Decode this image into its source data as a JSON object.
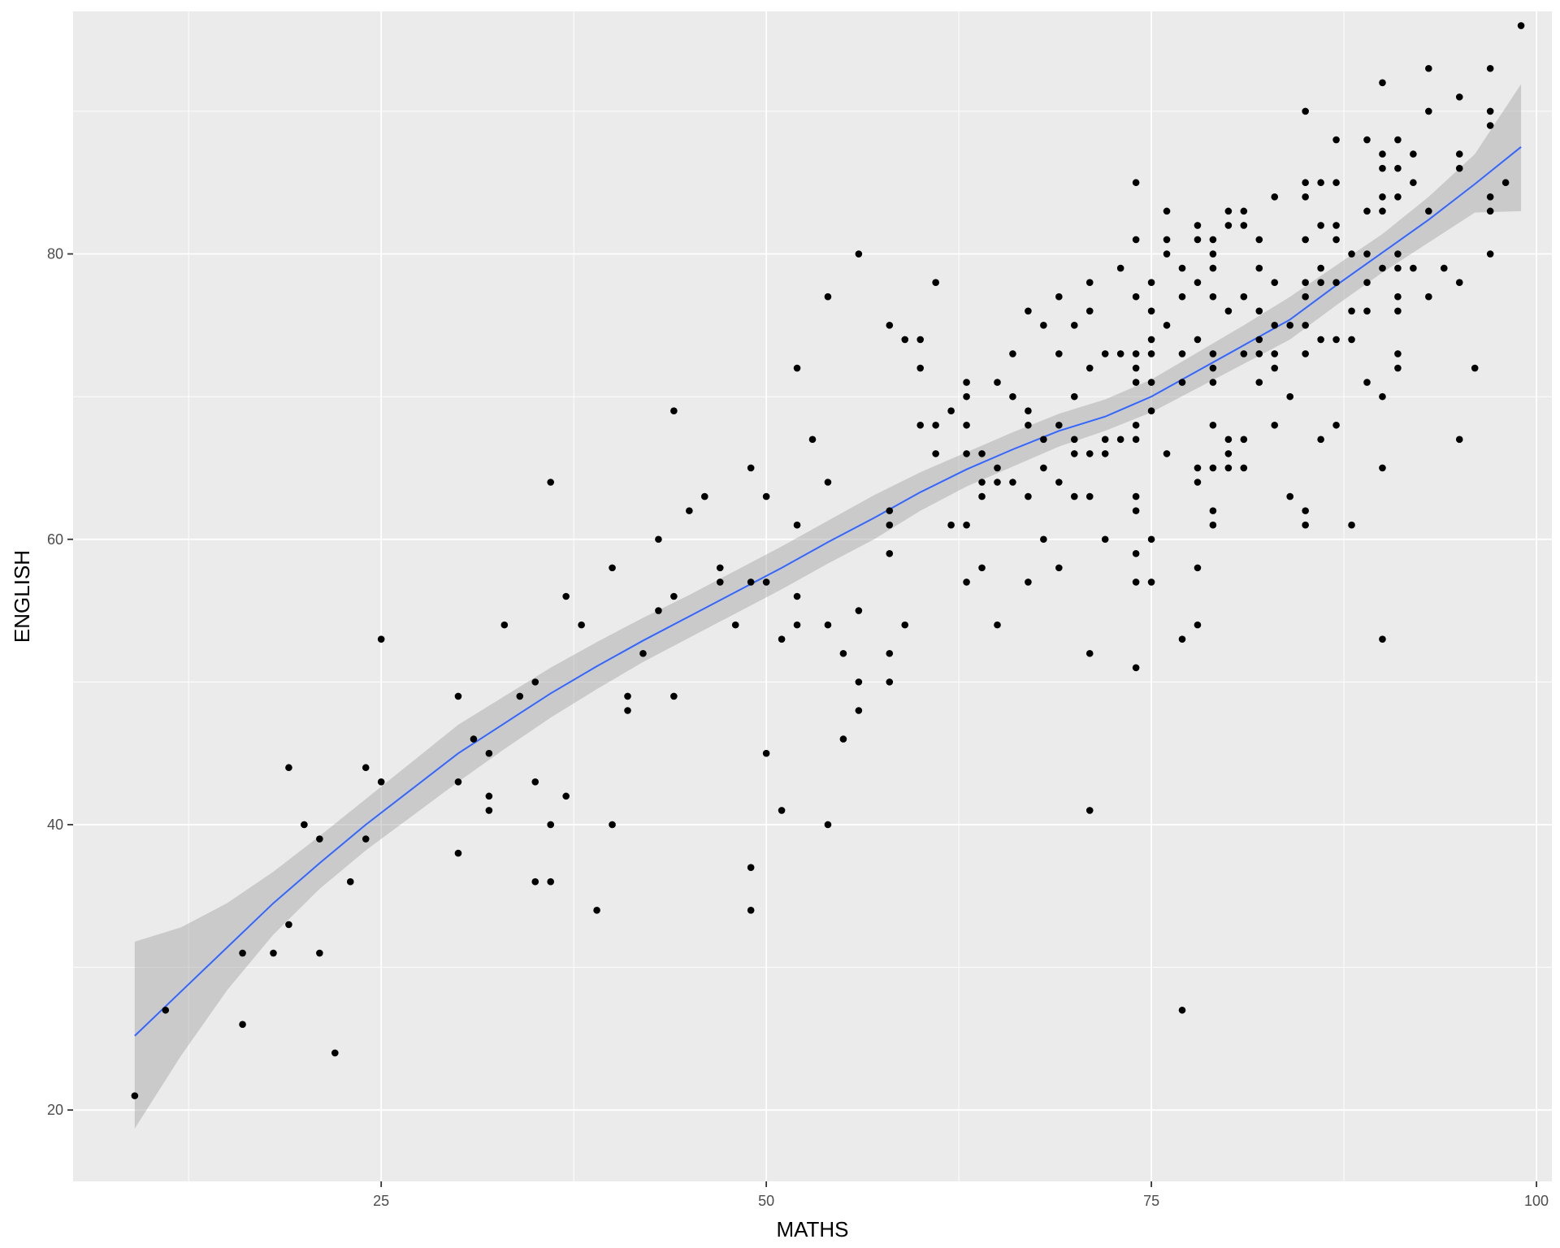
{
  "chart_data": {
    "type": "scatter",
    "title": "",
    "xlabel": "MATHS",
    "ylabel": "ENGLISH",
    "xlim": [
      5,
      101
    ],
    "ylim": [
      15,
      97
    ],
    "x_ticks": [
      25,
      50,
      75,
      100
    ],
    "y_ticks": [
      20,
      40,
      60,
      80
    ],
    "x_tick_labels": [
      "25",
      "50",
      "75",
      "100"
    ],
    "y_tick_labels": [
      "20",
      "40",
      "60",
      "80"
    ],
    "grid": true,
    "legend": "none",
    "colors": {
      "panel": "#ebebeb",
      "grid_major": "#ffffff",
      "point": "#000000",
      "smooth_line": "#3366ff",
      "confidence_band": "#999999"
    },
    "points": [
      [
        9,
        21
      ],
      [
        11,
        27
      ],
      [
        16,
        31
      ],
      [
        16,
        26
      ],
      [
        18,
        31
      ],
      [
        19,
        44
      ],
      [
        19,
        33
      ],
      [
        20,
        40
      ],
      [
        21,
        39
      ],
      [
        21,
        31
      ],
      [
        22,
        24
      ],
      [
        23,
        36
      ],
      [
        24,
        44
      ],
      [
        24,
        39
      ],
      [
        25,
        53
      ],
      [
        25,
        43
      ],
      [
        30,
        49
      ],
      [
        30,
        43
      ],
      [
        30,
        38
      ],
      [
        31,
        46
      ],
      [
        32,
        45
      ],
      [
        32,
        42
      ],
      [
        32,
        41
      ],
      [
        33,
        54
      ],
      [
        34,
        49
      ],
      [
        35,
        50
      ],
      [
        35,
        43
      ],
      [
        35,
        36
      ],
      [
        36,
        64
      ],
      [
        36,
        40
      ],
      [
        36,
        36
      ],
      [
        37,
        56
      ],
      [
        37,
        42
      ],
      [
        38,
        54
      ],
      [
        39,
        34
      ],
      [
        40,
        58
      ],
      [
        40,
        40
      ],
      [
        41,
        49
      ],
      [
        41,
        48
      ],
      [
        42,
        52
      ],
      [
        43,
        60
      ],
      [
        43,
        55
      ],
      [
        44,
        69
      ],
      [
        44,
        56
      ],
      [
        44,
        49
      ],
      [
        45,
        62
      ],
      [
        46,
        63
      ],
      [
        47,
        58
      ],
      [
        47,
        57
      ],
      [
        48,
        54
      ],
      [
        49,
        65
      ],
      [
        49,
        57
      ],
      [
        49,
        37
      ],
      [
        49,
        34
      ],
      [
        50,
        63
      ],
      [
        50,
        57
      ],
      [
        50,
        45
      ],
      [
        51,
        53
      ],
      [
        51,
        41
      ],
      [
        52,
        72
      ],
      [
        52,
        61
      ],
      [
        52,
        56
      ],
      [
        52,
        54
      ],
      [
        53,
        67
      ],
      [
        54,
        77
      ],
      [
        54,
        64
      ],
      [
        54,
        54
      ],
      [
        54,
        40
      ],
      [
        55,
        52
      ],
      [
        55,
        46
      ],
      [
        56,
        80
      ],
      [
        56,
        55
      ],
      [
        56,
        50
      ],
      [
        56,
        48
      ],
      [
        58,
        75
      ],
      [
        58,
        62
      ],
      [
        58,
        61
      ],
      [
        58,
        59
      ],
      [
        58,
        52
      ],
      [
        58,
        50
      ],
      [
        59,
        74
      ],
      [
        59,
        54
      ],
      [
        60,
        74
      ],
      [
        60,
        72
      ],
      [
        60,
        68
      ],
      [
        61,
        78
      ],
      [
        61,
        68
      ],
      [
        61,
        66
      ],
      [
        62,
        69
      ],
      [
        62,
        61
      ],
      [
        63,
        71
      ],
      [
        63,
        70
      ],
      [
        63,
        68
      ],
      [
        63,
        66
      ],
      [
        63,
        61
      ],
      [
        63,
        57
      ],
      [
        64,
        66
      ],
      [
        64,
        64
      ],
      [
        64,
        63
      ],
      [
        64,
        58
      ],
      [
        65,
        71
      ],
      [
        65,
        65
      ],
      [
        65,
        64
      ],
      [
        65,
        54
      ],
      [
        66,
        73
      ],
      [
        66,
        70
      ],
      [
        66,
        64
      ],
      [
        67,
        76
      ],
      [
        67,
        69
      ],
      [
        67,
        68
      ],
      [
        67,
        63
      ],
      [
        67,
        57
      ],
      [
        68,
        75
      ],
      [
        68,
        67
      ],
      [
        68,
        65
      ],
      [
        68,
        60
      ],
      [
        69,
        77
      ],
      [
        69,
        73
      ],
      [
        69,
        68
      ],
      [
        69,
        64
      ],
      [
        69,
        58
      ],
      [
        70,
        75
      ],
      [
        70,
        70
      ],
      [
        70,
        67
      ],
      [
        70,
        66
      ],
      [
        70,
        63
      ],
      [
        71,
        78
      ],
      [
        71,
        76
      ],
      [
        71,
        72
      ],
      [
        71,
        66
      ],
      [
        71,
        63
      ],
      [
        71,
        52
      ],
      [
        71,
        41
      ],
      [
        72,
        73
      ],
      [
        72,
        67
      ],
      [
        72,
        66
      ],
      [
        72,
        60
      ],
      [
        73,
        79
      ],
      [
        73,
        73
      ],
      [
        73,
        67
      ],
      [
        74,
        85
      ],
      [
        74,
        81
      ],
      [
        74,
        77
      ],
      [
        74,
        73
      ],
      [
        74,
        72
      ],
      [
        74,
        71
      ],
      [
        74,
        68
      ],
      [
        74,
        67
      ],
      [
        74,
        63
      ],
      [
        74,
        62
      ],
      [
        74,
        59
      ],
      [
        74,
        57
      ],
      [
        74,
        51
      ],
      [
        75,
        78
      ],
      [
        75,
        76
      ],
      [
        75,
        74
      ],
      [
        75,
        73
      ],
      [
        75,
        71
      ],
      [
        75,
        69
      ],
      [
        75,
        60
      ],
      [
        75,
        57
      ],
      [
        76,
        83
      ],
      [
        76,
        81
      ],
      [
        76,
        80
      ],
      [
        76,
        75
      ],
      [
        76,
        66
      ],
      [
        77,
        79
      ],
      [
        77,
        77
      ],
      [
        77,
        73
      ],
      [
        77,
        71
      ],
      [
        77,
        53
      ],
      [
        77,
        27
      ],
      [
        78,
        82
      ],
      [
        78,
        81
      ],
      [
        78,
        78
      ],
      [
        78,
        74
      ],
      [
        78,
        65
      ],
      [
        78,
        64
      ],
      [
        78,
        58
      ],
      [
        78,
        54
      ],
      [
        79,
        81
      ],
      [
        79,
        80
      ],
      [
        79,
        79
      ],
      [
        79,
        77
      ],
      [
        79,
        73
      ],
      [
        79,
        72
      ],
      [
        79,
        71
      ],
      [
        79,
        68
      ],
      [
        79,
        65
      ],
      [
        79,
        62
      ],
      [
        79,
        61
      ],
      [
        80,
        83
      ],
      [
        80,
        82
      ],
      [
        80,
        76
      ],
      [
        80,
        67
      ],
      [
        80,
        66
      ],
      [
        80,
        65
      ],
      [
        81,
        83
      ],
      [
        81,
        82
      ],
      [
        81,
        77
      ],
      [
        81,
        73
      ],
      [
        81,
        67
      ],
      [
        81,
        65
      ],
      [
        82,
        81
      ],
      [
        82,
        79
      ],
      [
        82,
        76
      ],
      [
        82,
        74
      ],
      [
        82,
        73
      ],
      [
        82,
        71
      ],
      [
        83,
        84
      ],
      [
        83,
        78
      ],
      [
        83,
        75
      ],
      [
        83,
        73
      ],
      [
        83,
        72
      ],
      [
        83,
        68
      ],
      [
        84,
        75
      ],
      [
        84,
        70
      ],
      [
        84,
        63
      ],
      [
        85,
        90
      ],
      [
        85,
        85
      ],
      [
        85,
        84
      ],
      [
        85,
        81
      ],
      [
        85,
        78
      ],
      [
        85,
        77
      ],
      [
        85,
        75
      ],
      [
        85,
        73
      ],
      [
        85,
        62
      ],
      [
        85,
        61
      ],
      [
        86,
        85
      ],
      [
        86,
        82
      ],
      [
        86,
        79
      ],
      [
        86,
        78
      ],
      [
        86,
        74
      ],
      [
        86,
        67
      ],
      [
        87,
        88
      ],
      [
        87,
        85
      ],
      [
        87,
        82
      ],
      [
        87,
        81
      ],
      [
        87,
        78
      ],
      [
        87,
        74
      ],
      [
        87,
        68
      ],
      [
        88,
        80
      ],
      [
        88,
        76
      ],
      [
        88,
        74
      ],
      [
        88,
        61
      ],
      [
        89,
        88
      ],
      [
        89,
        83
      ],
      [
        89,
        80
      ],
      [
        89,
        78
      ],
      [
        89,
        76
      ],
      [
        89,
        71
      ],
      [
        90,
        92
      ],
      [
        90,
        87
      ],
      [
        90,
        86
      ],
      [
        90,
        84
      ],
      [
        90,
        83
      ],
      [
        90,
        79
      ],
      [
        90,
        70
      ],
      [
        90,
        65
      ],
      [
        90,
        53
      ],
      [
        91,
        88
      ],
      [
        91,
        86
      ],
      [
        91,
        84
      ],
      [
        91,
        80
      ],
      [
        91,
        79
      ],
      [
        91,
        77
      ],
      [
        91,
        76
      ],
      [
        91,
        73
      ],
      [
        91,
        72
      ],
      [
        92,
        87
      ],
      [
        92,
        85
      ],
      [
        92,
        79
      ],
      [
        93,
        93
      ],
      [
        93,
        90
      ],
      [
        93,
        83
      ],
      [
        93,
        77
      ],
      [
        94,
        79
      ],
      [
        95,
        91
      ],
      [
        95,
        87
      ],
      [
        95,
        86
      ],
      [
        95,
        78
      ],
      [
        95,
        67
      ],
      [
        96,
        72
      ],
      [
        97,
        93
      ],
      [
        97,
        90
      ],
      [
        97,
        89
      ],
      [
        97,
        84
      ],
      [
        97,
        83
      ],
      [
        97,
        80
      ],
      [
        98,
        85
      ],
      [
        99,
        96
      ]
    ],
    "smooth": {
      "x": [
        9,
        12,
        15,
        18,
        21,
        24,
        27,
        30,
        33,
        36,
        39,
        42,
        45,
        48,
        51,
        54,
        57,
        60,
        63,
        66,
        69,
        72,
        75,
        78,
        81,
        84,
        87,
        90,
        93,
        96,
        99
      ],
      "y": [
        25.2,
        28.3,
        31.4,
        34.5,
        37.3,
        40.0,
        42.5,
        45.0,
        47.1,
        49.2,
        51.1,
        52.9,
        54.6,
        56.3,
        58.0,
        59.8,
        61.5,
        63.3,
        64.9,
        66.3,
        67.6,
        68.6,
        70.0,
        71.8,
        73.6,
        75.4,
        77.8,
        80.1,
        82.4,
        84.9,
        87.5
      ],
      "lower": [
        18.7,
        23.8,
        28.4,
        32.3,
        35.5,
        38.2,
        40.6,
        43.0,
        45.3,
        47.5,
        49.5,
        51.4,
        53.1,
        54.8,
        56.5,
        58.3,
        60.0,
        62.0,
        63.7,
        65.1,
        66.5,
        67.6,
        68.9,
        70.6,
        72.3,
        74.0,
        76.4,
        78.7,
        80.8,
        82.9,
        83.0
      ],
      "upper": [
        31.8,
        32.8,
        34.5,
        36.7,
        39.2,
        41.8,
        44.4,
        47.0,
        49.0,
        51.0,
        52.8,
        54.5,
        56.1,
        57.8,
        59.5,
        61.3,
        63.1,
        64.7,
        66.1,
        67.5,
        68.8,
        69.8,
        71.2,
        73.1,
        75.0,
        77.0,
        79.2,
        81.4,
        84.0,
        87.0,
        91.9
      ]
    }
  }
}
